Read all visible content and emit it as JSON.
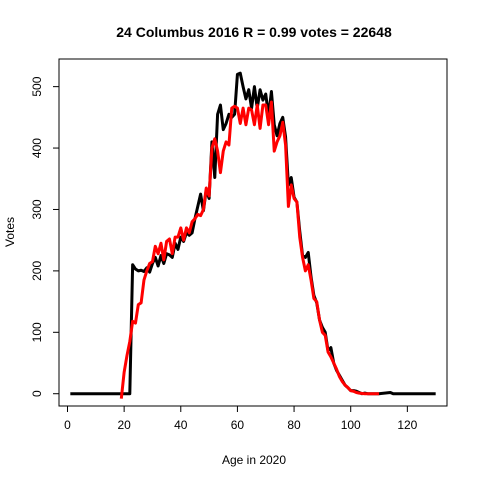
{
  "chart_data": {
    "type": "line",
    "title": "24 Columbus 2016 R = 0.99 votes = 22648",
    "xlabel": "Age in 2020",
    "ylabel": "Votes",
    "xlim": [
      -3,
      134
    ],
    "ylim": [
      -20,
      545
    ],
    "x_ticks": [
      0,
      20,
      40,
      60,
      80,
      100,
      120
    ],
    "y_ticks": [
      0,
      100,
      200,
      300,
      400,
      500
    ],
    "grid": false,
    "legend": "none",
    "series": [
      {
        "color": "#000000",
        "points": [
          [
            1,
            0
          ],
          [
            10,
            0
          ],
          [
            21,
            0
          ],
          [
            22,
            0
          ],
          [
            23,
            210
          ],
          [
            24,
            203
          ],
          [
            25,
            200
          ],
          [
            26,
            201
          ],
          [
            27,
            199
          ],
          [
            28,
            205
          ],
          [
            29,
            198
          ],
          [
            30,
            212
          ],
          [
            31,
            222
          ],
          [
            32,
            208
          ],
          [
            33,
            225
          ],
          [
            34,
            212
          ],
          [
            35,
            228
          ],
          [
            36,
            226
          ],
          [
            37,
            222
          ],
          [
            38,
            245
          ],
          [
            39,
            235
          ],
          [
            40,
            255
          ],
          [
            41,
            248
          ],
          [
            42,
            262
          ],
          [
            43,
            258
          ],
          [
            44,
            262
          ],
          [
            45,
            285
          ],
          [
            46,
            305
          ],
          [
            47,
            325
          ],
          [
            48,
            298
          ],
          [
            49,
            332
          ],
          [
            50,
            318
          ],
          [
            51,
            410
          ],
          [
            52,
            352
          ],
          [
            53,
            455
          ],
          [
            54,
            470
          ],
          [
            55,
            430
          ],
          [
            56,
            440
          ],
          [
            57,
            455
          ],
          [
            58,
            450
          ],
          [
            59,
            455
          ],
          [
            60,
            520
          ],
          [
            61,
            522
          ],
          [
            62,
            500
          ],
          [
            63,
            480
          ],
          [
            64,
            495
          ],
          [
            65,
            465
          ],
          [
            66,
            500
          ],
          [
            67,
            465
          ],
          [
            68,
            495
          ],
          [
            69,
            478
          ],
          [
            70,
            488
          ],
          [
            71,
            452
          ],
          [
            72,
            492
          ],
          [
            73,
            438
          ],
          [
            74,
            420
          ],
          [
            75,
            440
          ],
          [
            76,
            450
          ],
          [
            77,
            418
          ],
          [
            78,
            340
          ],
          [
            79,
            352
          ],
          [
            80,
            320
          ],
          [
            81,
            312
          ],
          [
            82,
            265
          ],
          [
            83,
            225
          ],
          [
            84,
            222
          ],
          [
            85,
            230
          ],
          [
            86,
            190
          ],
          [
            87,
            160
          ],
          [
            88,
            148
          ],
          [
            89,
            120
          ],
          [
            90,
            108
          ],
          [
            91,
            100
          ],
          [
            92,
            70
          ],
          [
            93,
            75
          ],
          [
            94,
            50
          ],
          [
            95,
            38
          ],
          [
            96,
            30
          ],
          [
            97,
            22
          ],
          [
            98,
            14
          ],
          [
            99,
            10
          ],
          [
            100,
            5
          ],
          [
            101,
            5
          ],
          [
            102,
            4
          ],
          [
            103,
            2
          ],
          [
            104,
            0
          ],
          [
            105,
            1
          ],
          [
            106,
            0
          ],
          [
            108,
            0
          ],
          [
            110,
            0
          ],
          [
            114,
            2
          ],
          [
            115,
            0
          ],
          [
            120,
            0
          ],
          [
            130,
            0
          ]
        ]
      },
      {
        "color": "#ff0000",
        "points": [
          [
            19,
            -8
          ],
          [
            20,
            35
          ],
          [
            21,
            62
          ],
          [
            22,
            85
          ],
          [
            23,
            118
          ],
          [
            24,
            115
          ],
          [
            25,
            145
          ],
          [
            26,
            148
          ],
          [
            27,
            185
          ],
          [
            28,
            200
          ],
          [
            29,
            212
          ],
          [
            30,
            215
          ],
          [
            31,
            240
          ],
          [
            32,
            228
          ],
          [
            33,
            245
          ],
          [
            34,
            218
          ],
          [
            35,
            248
          ],
          [
            36,
            252
          ],
          [
            37,
            228
          ],
          [
            38,
            255
          ],
          [
            39,
            255
          ],
          [
            40,
            270
          ],
          [
            41,
            250
          ],
          [
            42,
            270
          ],
          [
            43,
            262
          ],
          [
            44,
            280
          ],
          [
            45,
            285
          ],
          [
            46,
            292
          ],
          [
            47,
            290
          ],
          [
            48,
            300
          ],
          [
            49,
            335
          ],
          [
            50,
            322
          ],
          [
            51,
            400
          ],
          [
            52,
            415
          ],
          [
            53,
            395
          ],
          [
            54,
            360
          ],
          [
            55,
            395
          ],
          [
            56,
            410
          ],
          [
            57,
            405
          ],
          [
            58,
            465
          ],
          [
            59,
            468
          ],
          [
            60,
            465
          ],
          [
            61,
            440
          ],
          [
            62,
            465
          ],
          [
            63,
            438
          ],
          [
            64,
            465
          ],
          [
            65,
            462
          ],
          [
            66,
            438
          ],
          [
            67,
            470
          ],
          [
            68,
            432
          ],
          [
            69,
            470
          ],
          [
            70,
            470
          ],
          [
            71,
            438
          ],
          [
            72,
            475
          ],
          [
            73,
            395
          ],
          [
            74,
            410
          ],
          [
            75,
            420
          ],
          [
            76,
            442
          ],
          [
            77,
            405
          ],
          [
            78,
            305
          ],
          [
            79,
            340
          ],
          [
            80,
            318
          ],
          [
            81,
            312
          ],
          [
            82,
            255
          ],
          [
            83,
            222
          ],
          [
            84,
            200
          ],
          [
            85,
            210
          ],
          [
            86,
            185
          ],
          [
            87,
            155
          ],
          [
            88,
            150
          ],
          [
            89,
            120
          ],
          [
            90,
            100
          ],
          [
            91,
            95
          ],
          [
            92,
            68
          ],
          [
            93,
            60
          ],
          [
            94,
            50
          ],
          [
            95,
            40
          ],
          [
            96,
            28
          ],
          [
            97,
            20
          ],
          [
            98,
            14
          ],
          [
            99,
            10
          ],
          [
            100,
            5
          ],
          [
            101,
            4
          ],
          [
            102,
            2
          ],
          [
            103,
            1
          ],
          [
            105,
            0
          ],
          [
            110,
            0
          ]
        ]
      }
    ]
  }
}
